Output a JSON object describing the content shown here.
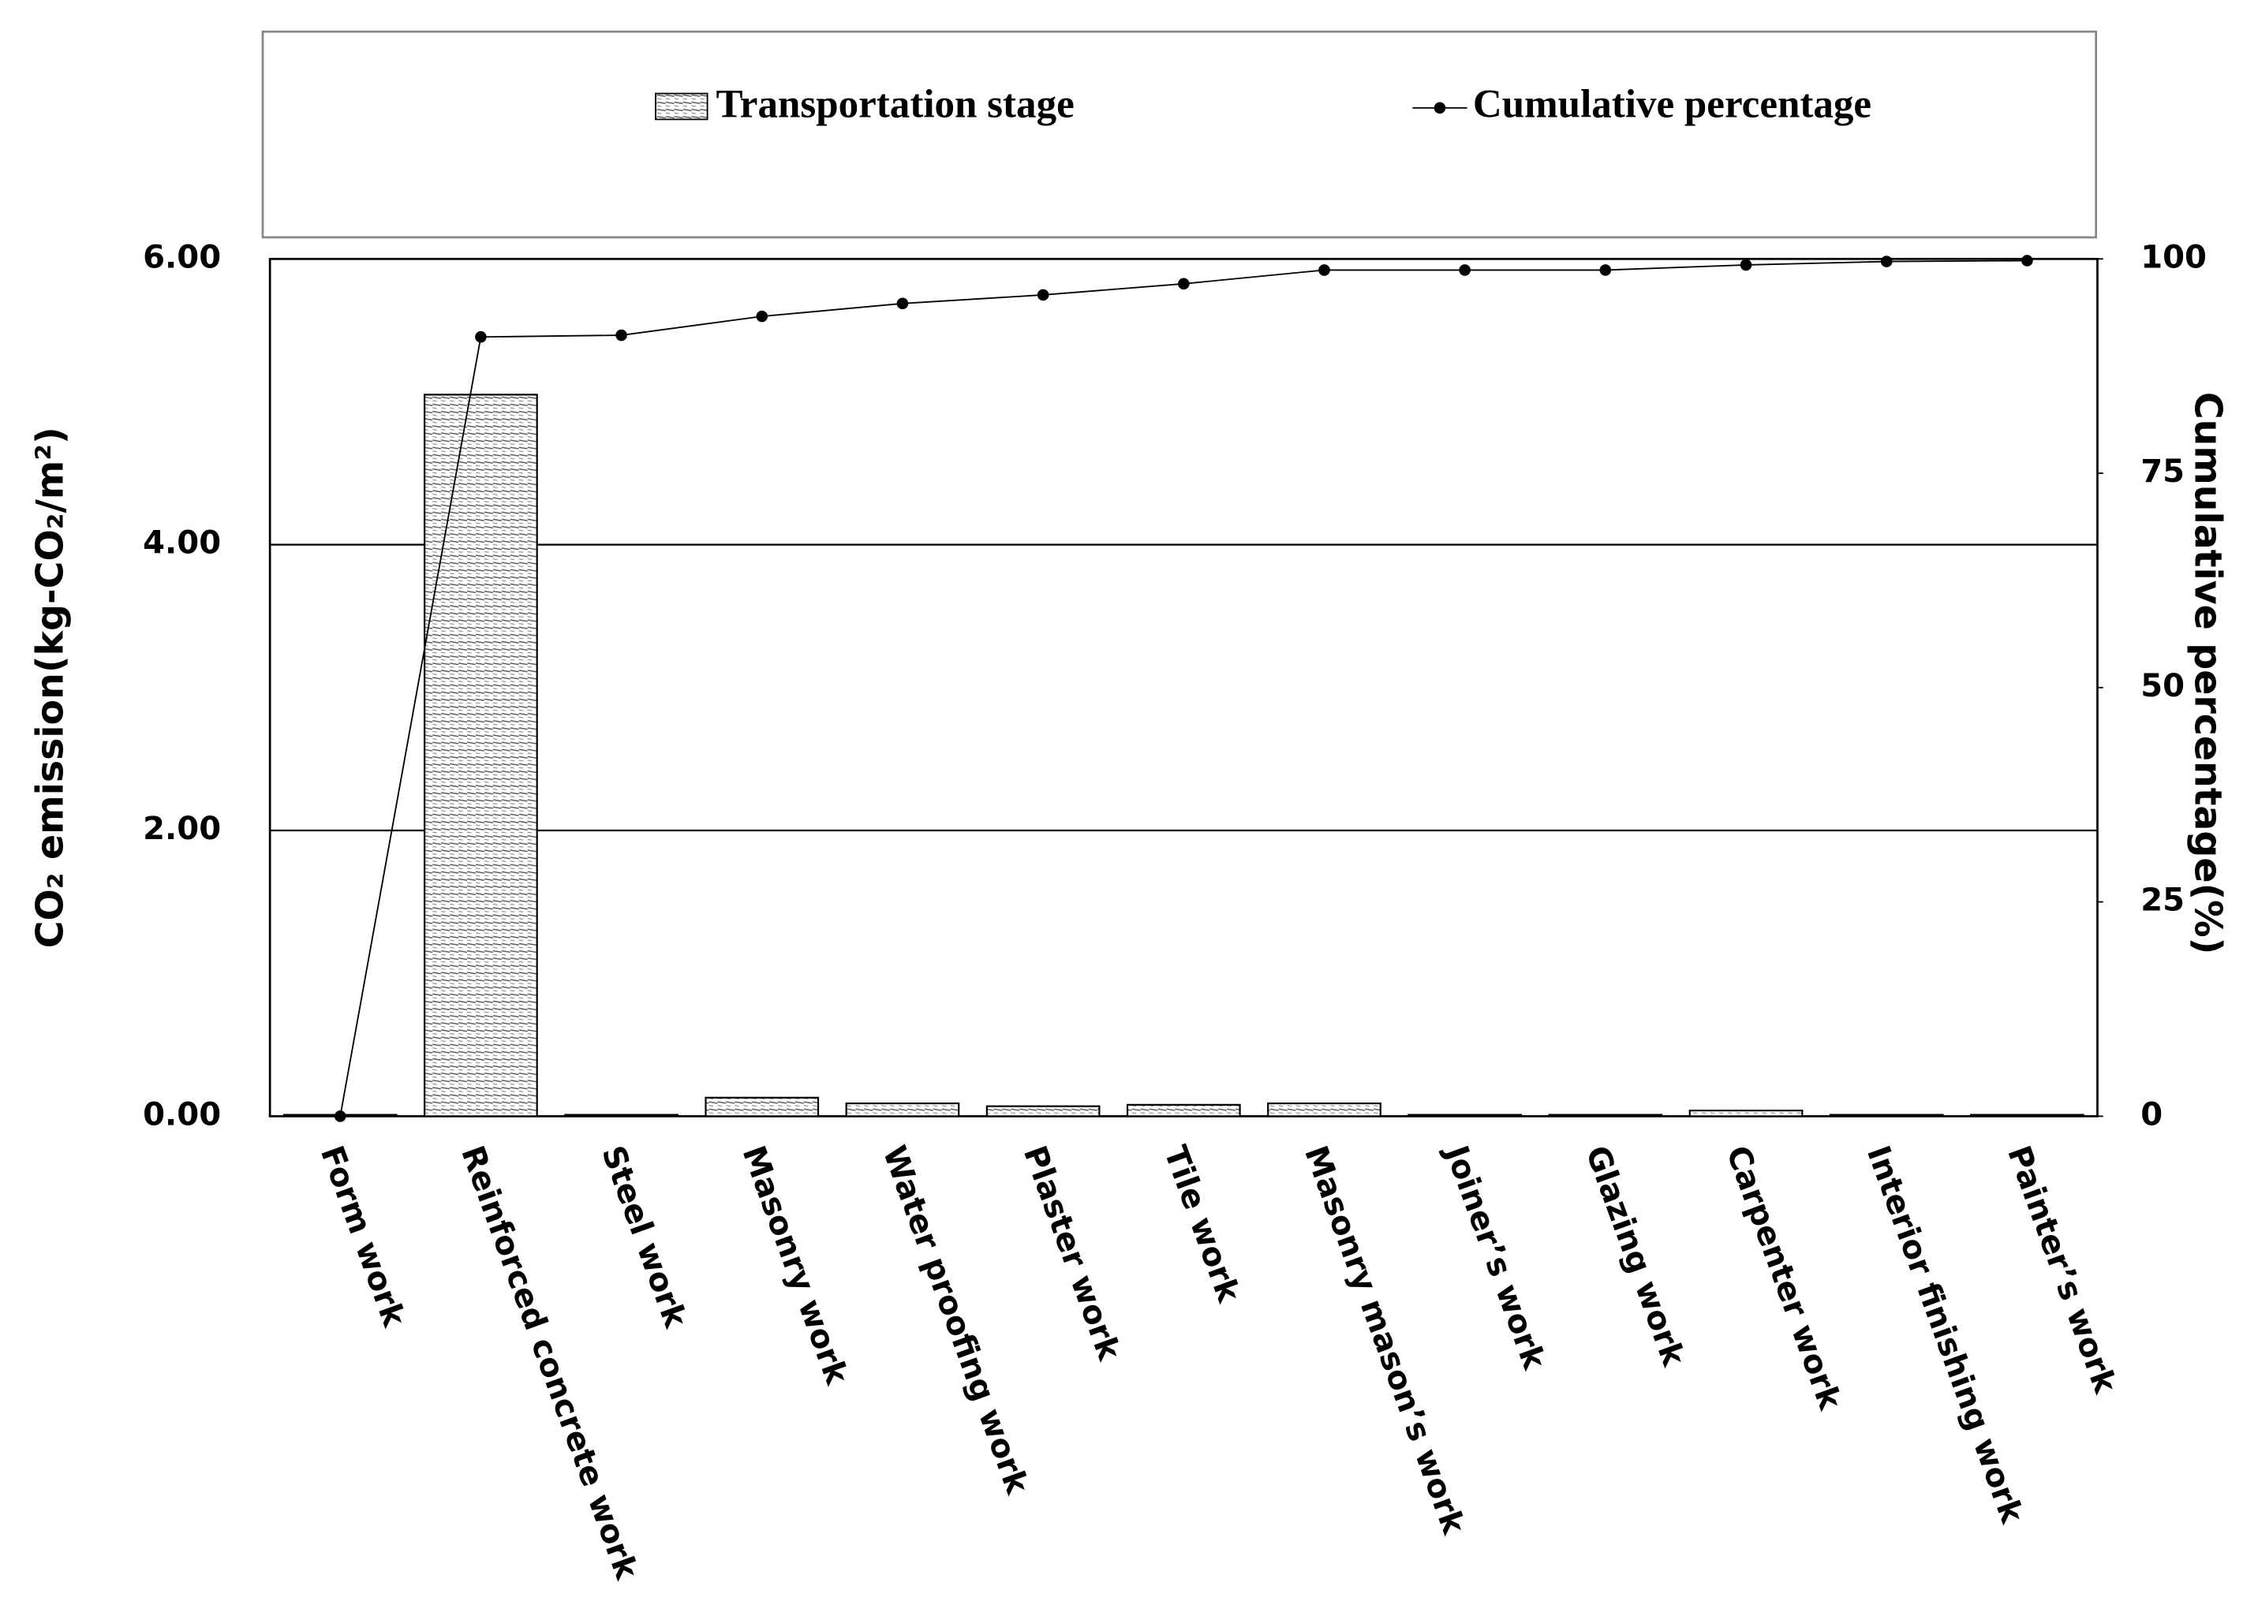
{
  "chart_data": {
    "type": "bar",
    "categories": [
      "Form work",
      "Reinforced concrete work",
      "Steel work",
      "Masonry work",
      "Water proofing work",
      "Plaster work",
      "Tile work",
      "Masonry mason’s work",
      "Joiner’s work",
      "Glazing work",
      "Carpenter work",
      "Interior finishing work",
      "Painter’s work"
    ],
    "series": [
      {
        "name": "Transportation stage",
        "type": "bar",
        "color": "#ffffff",
        "values": [
          0.01,
          5.05,
          0.01,
          0.13,
          0.09,
          0.07,
          0.08,
          0.09,
          0.01,
          0.01,
          0.04,
          0.01,
          0.01
        ]
      },
      {
        "name": "Cumulative percentage",
        "type": "line",
        "axis": "y2",
        "color": "#000000",
        "values": [
          0,
          90.9,
          91.1,
          93.3,
          94.8,
          95.8,
          97.1,
          98.7,
          98.7,
          98.7,
          99.3,
          99.7,
          99.8
        ]
      }
    ],
    "y_label": "CO₂ emission(kg-CO₂/m²)",
    "y2_label": "Cumulative percentage(%)",
    "ylim": [
      0,
      6
    ],
    "yticks": [
      {
        "value": 0,
        "label": "0.00"
      },
      {
        "value": 2,
        "label": "2.00"
      },
      {
        "value": 4,
        "label": "4.00"
      },
      {
        "value": 6,
        "label": "6.00"
      }
    ],
    "y2lim": [
      0,
      100
    ],
    "y2ticks": [
      0,
      25,
      50,
      75,
      100
    ],
    "grid": true
  }
}
